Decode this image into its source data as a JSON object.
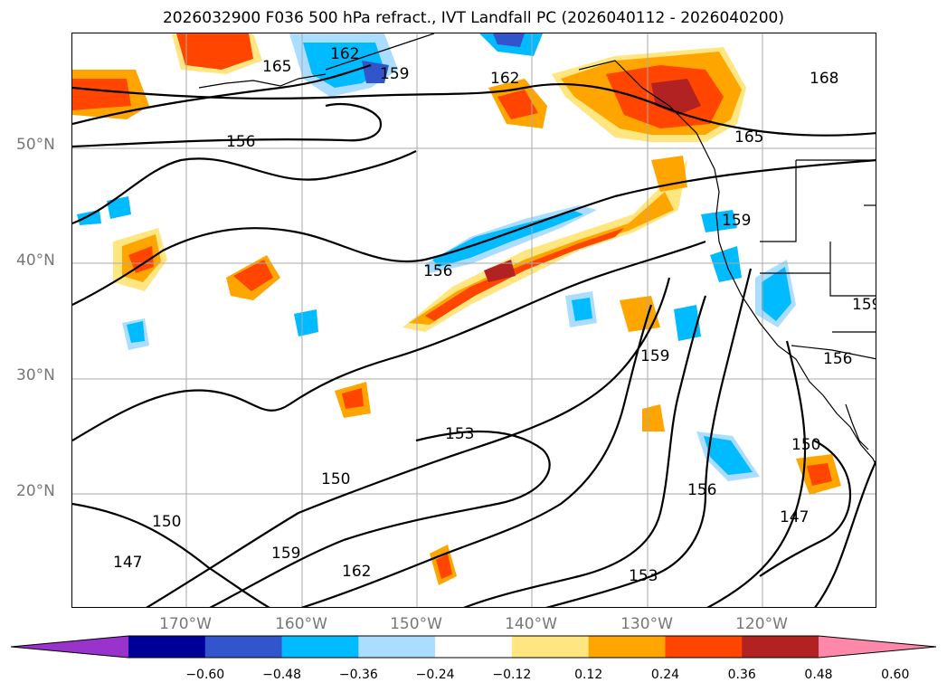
{
  "title": "2026032900 F036 500 hPa refract., IVT Landfall PC (2026040112 - 2026040200)",
  "map": {
    "lat_labels": [
      "50°N",
      "40°N",
      "30°N",
      "20°N"
    ],
    "lon_labels": [
      "170°W",
      "160°W",
      "150°W",
      "140°W",
      "130°W",
      "120°W"
    ],
    "contour_labels": [
      "165",
      "162",
      "159",
      "162",
      "168",
      "165",
      "156",
      "159",
      "156",
      "159",
      "156",
      "153",
      "150",
      "150",
      "147",
      "159",
      "162",
      "153",
      "156",
      "150",
      "147",
      "159"
    ],
    "colors": {
      "neg_060": "#9933cc",
      "neg_048": "#000099",
      "neg_036": "#3355cc",
      "neg_024": "#00bbff",
      "neg_012": "#aaddff",
      "pos_012": "#ffe680",
      "pos_024": "#ffa500",
      "pos_036": "#ff4500",
      "pos_048": "#b22222",
      "pos_060": "#ff88aa"
    }
  },
  "colorbar": {
    "ticks": [
      "−0.60",
      "−0.48",
      "−0.36",
      "−0.24",
      "−0.12",
      "0.12",
      "0.24",
      "0.36",
      "0.48",
      "0.60"
    ],
    "colors": [
      "#9933cc",
      "#000099",
      "#3355cc",
      "#00bbff",
      "#aaddff",
      "#ffffff",
      "#ffe680",
      "#ffa500",
      "#ff4500",
      "#b22222",
      "#ff88aa"
    ]
  }
}
